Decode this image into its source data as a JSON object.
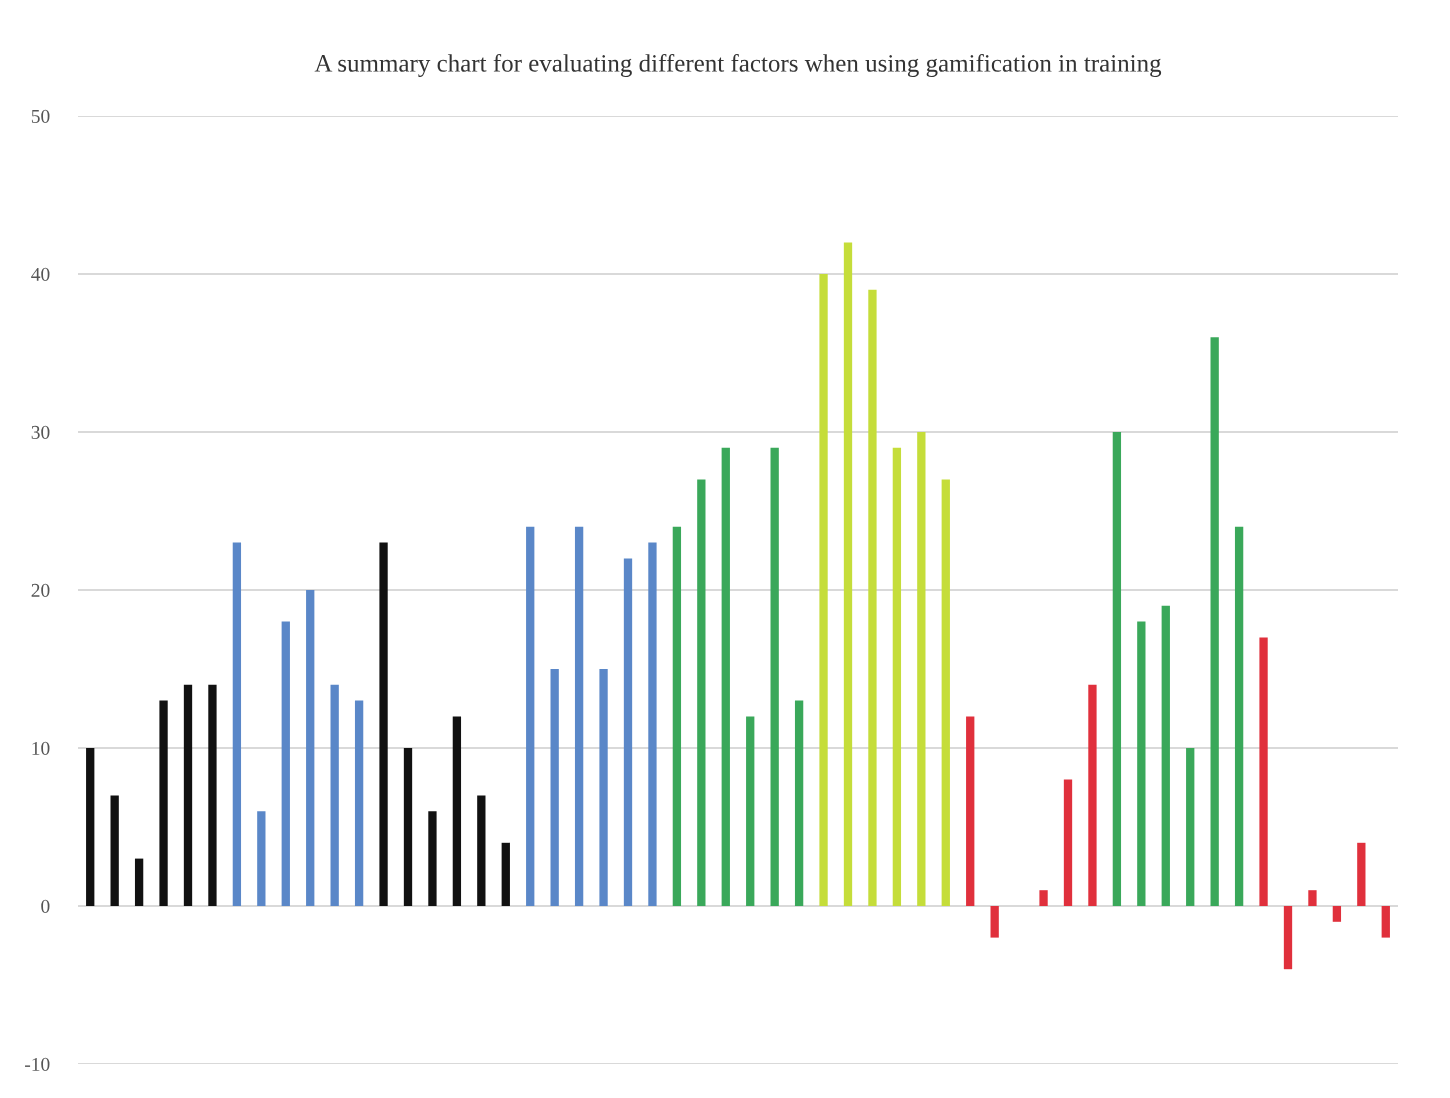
{
  "chart_data": {
    "type": "bar",
    "title": "A summary chart for evaluating different factors when using gamification in training",
    "categories": [
      null,
      null,
      null,
      null,
      null,
      null,
      null,
      null,
      null,
      null,
      null,
      null,
      null,
      null,
      null,
      null,
      null,
      null,
      null,
      null,
      null,
      null,
      null,
      null,
      null,
      null,
      null,
      null,
      null,
      null,
      null,
      null,
      null,
      null,
      null,
      null,
      null,
      null,
      null,
      null,
      null,
      null,
      null,
      null,
      null,
      null,
      null,
      null,
      null,
      null,
      null,
      null,
      null,
      null
    ],
    "values": [
      10,
      7,
      3,
      13,
      14,
      14,
      23,
      6,
      18,
      20,
      14,
      13,
      23,
      10,
      6,
      12,
      7,
      4,
      24,
      15,
      24,
      15,
      22,
      23,
      24,
      27,
      29,
      12,
      29,
      13,
      40,
      42,
      39,
      29,
      30,
      27,
      12,
      -2,
      0,
      1,
      8,
      14,
      30,
      18,
      19,
      10,
      36,
      24,
      17,
      -4,
      1,
      -1,
      4,
      -2
    ],
    "colors": [
      "#111111",
      "#111111",
      "#111111",
      "#111111",
      "#111111",
      "#111111",
      "#5a87c8",
      "#5a87c8",
      "#5a87c8",
      "#5a87c8",
      "#5a87c8",
      "#5a87c8",
      "#111111",
      "#111111",
      "#111111",
      "#111111",
      "#111111",
      "#111111",
      "#5a87c8",
      "#5a87c8",
      "#5a87c8",
      "#5a87c8",
      "#5a87c8",
      "#5a87c8",
      "#3aa85a",
      "#3aa85a",
      "#3aa85a",
      "#3aa85a",
      "#3aa85a",
      "#3aa85a",
      "#c5dd3a",
      "#c5dd3a",
      "#c5dd3a",
      "#c5dd3a",
      "#c5dd3a",
      "#c5dd3a",
      "#e0303c",
      "#e0303c",
      "#e0303c",
      "#e0303c",
      "#e0303c",
      "#e0303c",
      "#3aa85a",
      "#3aa85a",
      "#3aa85a",
      "#3aa85a",
      "#3aa85a",
      "#3aa85a",
      "#e0303c",
      "#e0303c",
      "#e0303c",
      "#e0303c",
      "#e0303c",
      "#e0303c"
    ],
    "ylim": [
      -10,
      50
    ],
    "yticks": [
      -10,
      0,
      10,
      20,
      30,
      40,
      50
    ],
    "grid": "y"
  }
}
